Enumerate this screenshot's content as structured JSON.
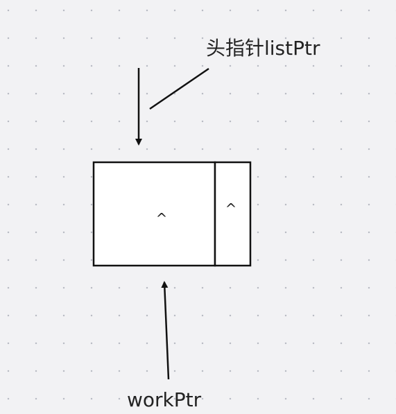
{
  "labels": {
    "head_pointer": "头指针listPtr",
    "work_pointer": "workPtr"
  },
  "node": {
    "data_field": "^",
    "next_field": "^"
  },
  "colors": {
    "background": "#f2f2f4",
    "stroke": "#111111",
    "grid_dot": "#b9bcc4"
  }
}
